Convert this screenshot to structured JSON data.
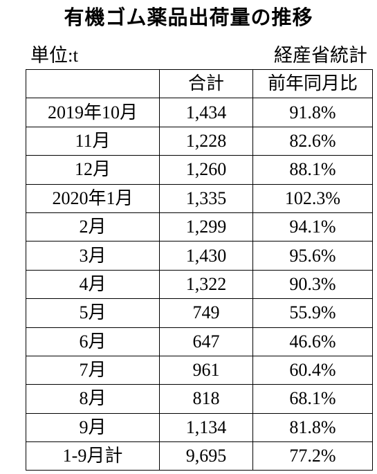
{
  "header": {
    "title": "有機ゴム薬品出荷量の推移",
    "unit": "単位:t",
    "source": "経産省統計"
  },
  "table": {
    "columns": [
      "合計",
      "前年同月比"
    ],
    "rows": [
      [
        "2019年10月",
        "1,434",
        "91.8%"
      ],
      [
        "11月",
        "1,228",
        "82.6%"
      ],
      [
        "12月",
        "1,260",
        "88.1%"
      ],
      [
        "2020年1月",
        "1,335",
        "102.3%"
      ],
      [
        "2月",
        "1,299",
        "94.1%"
      ],
      [
        "3月",
        "1,430",
        "95.6%"
      ],
      [
        "4月",
        "1,322",
        "90.3%"
      ],
      [
        "5月",
        "749",
        "55.9%"
      ],
      [
        "6月",
        "647",
        "46.6%"
      ],
      [
        "7月",
        "961",
        "60.4%"
      ],
      [
        "8月",
        "818",
        "68.1%"
      ],
      [
        "9月",
        "1,134",
        "81.8%"
      ],
      [
        "1-9月計",
        "9,695",
        "77.2%"
      ]
    ]
  }
}
